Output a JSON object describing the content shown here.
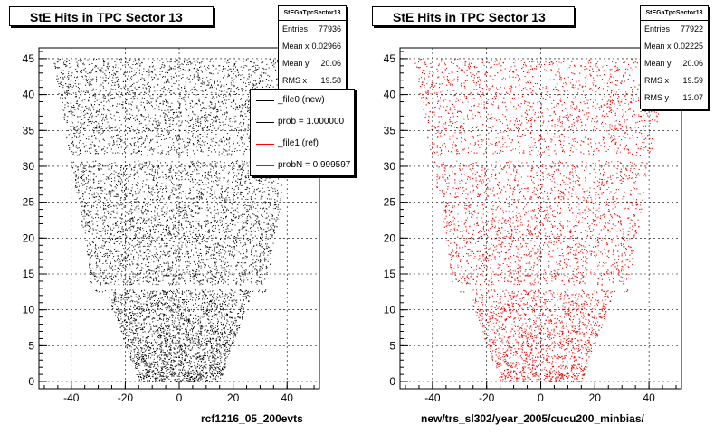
{
  "chart_data": [
    {
      "type": "scatter",
      "title": "StE Hits in TPC Sector 13",
      "xlabel": "rcf1216_05_200evts",
      "ylabel": "",
      "xlim": [
        -52,
        52
      ],
      "ylim": [
        -1,
        46.5
      ],
      "xticks": [
        -40,
        -20,
        0,
        20,
        40
      ],
      "yticks": [
        0,
        5,
        10,
        15,
        20,
        25,
        30,
        35,
        40,
        45
      ],
      "grid": true,
      "point_color": "#000000",
      "region": {
        "top_y": 45,
        "top_half_width": 47,
        "mid_y": 15,
        "mid_half_width": 33,
        "step_y": 12.5,
        "step_half_width": 27,
        "bottom_y": 0,
        "bottom_half_width": 15
      },
      "gaps_y": [
        13.2,
        31.2
      ],
      "stats": {
        "name": "StEGaTpcSector13",
        "entries_label": "Entries",
        "entries": "77936",
        "mean_x_label": "Mean x",
        "mean_x": "0.02966",
        "mean_y_label": "Mean y",
        "mean_y": "20.06",
        "rms_x_label": "RMS x",
        "rms_x": "19.58"
      },
      "legend": [
        {
          "label": "_file0 (new)",
          "color": "#000000"
        },
        {
          "label": "prob = 1.000000",
          "color": "#000000"
        },
        {
          "label": "_file1 (ref)",
          "color": "#ff0000"
        },
        {
          "label": "probN = 0.999597",
          "color": "#ff0000"
        }
      ]
    },
    {
      "type": "scatter",
      "title": "StE Hits in TPC Sector 13",
      "xlabel": "new/trs_sl302/year_2005/cucu200_minbias/",
      "ylabel": "",
      "xlim": [
        -52,
        52
      ],
      "ylim": [
        -1,
        46.5
      ],
      "xticks": [
        -40,
        -20,
        0,
        20,
        40
      ],
      "yticks": [
        0,
        5,
        10,
        15,
        20,
        25,
        30,
        35,
        40,
        45
      ],
      "grid": true,
      "point_color": "#ff0000",
      "region": {
        "top_y": 45,
        "top_half_width": 47,
        "mid_y": 15,
        "mid_half_width": 33,
        "step_y": 12.5,
        "step_half_width": 27,
        "bottom_y": 0,
        "bottom_half_width": 15
      },
      "gaps_y": [
        13.2,
        31.2
      ],
      "stats": {
        "name": "StEGaTpcSector13",
        "entries_label": "Entries",
        "entries": "77922",
        "mean_x_label": "Mean x",
        "mean_x": "0.02225",
        "mean_y_label": "Mean y",
        "mean_y": "20.06",
        "rms_x_label": "RMS x",
        "rms_x": "19.59",
        "rms_y_label": "RMS y",
        "rms_y": "13.07"
      }
    }
  ]
}
